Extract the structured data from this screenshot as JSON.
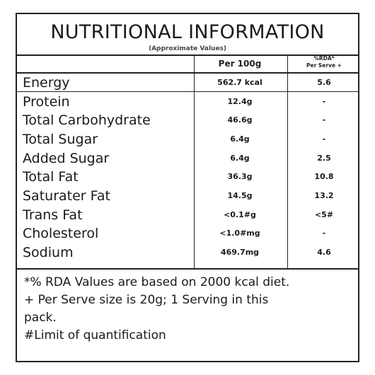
{
  "label": {
    "title": "NUTRITIONAL INFORMATION",
    "subtitle": "(Approximate Values)",
    "header": {
      "per100": "Per 100g",
      "rda_line1": "%RDA*",
      "rda_line2": "Per Serve +"
    },
    "rows": [
      {
        "nutrient": "Energy",
        "per100": "562.7 kcal",
        "rda": "5.6"
      },
      {
        "nutrient": "Protein",
        "per100": "12.4g",
        "rda": "-"
      },
      {
        "nutrient": "Total Carbohydrate",
        "per100": "46.6g",
        "rda": "-"
      },
      {
        "nutrient": "Total Sugar",
        "per100": "6.4g",
        "rda": "-"
      },
      {
        "nutrient": "Added Sugar",
        "per100": "6.4g",
        "rda": "2.5"
      },
      {
        "nutrient": "Total Fat",
        "per100": "36.3g",
        "rda": "10.8"
      },
      {
        "nutrient": "Saturater Fat",
        "per100": "14.5g",
        "rda": "13.2"
      },
      {
        "nutrient": "Trans Fat",
        "per100": "<0.1#g",
        "rda": "<5#"
      },
      {
        "nutrient": "Cholesterol",
        "per100": "<1.0#mg",
        "rda": "-"
      },
      {
        "nutrient": "Sodium",
        "per100": "469.7mg",
        "rda": "4.6"
      }
    ],
    "footnotes": {
      "line1": "*% RDA Values are based on 2000 kcal diet.",
      "line2": "+ Per Serve size is 20g; 1 Serving in this",
      "line3": "pack.",
      "line4": "#Limit of quantification"
    }
  }
}
